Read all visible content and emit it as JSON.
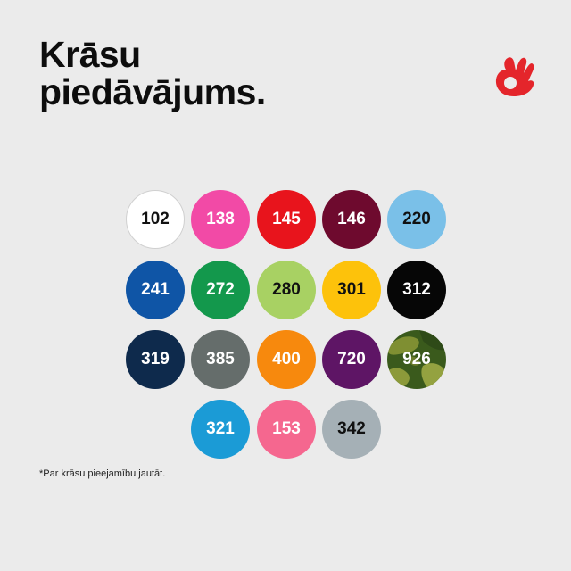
{
  "header": {
    "title_line1": "Krāsu",
    "title_line2": "piedāvājums."
  },
  "logo": {
    "icon": "ok-hand-icon",
    "color": "#e4252b"
  },
  "swatches": [
    {
      "label": "102",
      "color": "#ffffff",
      "text": "#111111"
    },
    {
      "label": "138",
      "color": "#f24aa6",
      "text": "#ffffff"
    },
    {
      "label": "145",
      "color": "#e8141c",
      "text": "#ffffff"
    },
    {
      "label": "146",
      "color": "#6e0a2e",
      "text": "#ffffff"
    },
    {
      "label": "220",
      "color": "#7ac0e8",
      "text": "#111111"
    },
    {
      "label": "241",
      "color": "#0f55a6",
      "text": "#ffffff"
    },
    {
      "label": "272",
      "color": "#13984c",
      "text": "#ffffff"
    },
    {
      "label": "280",
      "color": "#a8d163",
      "text": "#111111"
    },
    {
      "label": "301",
      "color": "#fdc20b",
      "text": "#111111"
    },
    {
      "label": "312",
      "color": "#060606",
      "text": "#ffffff"
    },
    {
      "label": "319",
      "color": "#0e2a4c",
      "text": "#ffffff"
    },
    {
      "label": "385",
      "color": "#656d6b",
      "text": "#ffffff"
    },
    {
      "label": "400",
      "color": "#f7890d",
      "text": "#ffffff"
    },
    {
      "label": "720",
      "color": "#5e1565",
      "text": "#ffffff"
    },
    {
      "label": "926",
      "color": "#3a5a1c",
      "text": "#ffffff",
      "pattern": "camo"
    },
    {
      "label": "321",
      "color": "#1b9bd6",
      "text": "#ffffff"
    },
    {
      "label": "153",
      "color": "#f5678f",
      "text": "#ffffff"
    },
    {
      "label": "342",
      "color": "#a5b0b6",
      "text": "#111111"
    }
  ],
  "footnote": "*Par krāsu pieejamību jautāt."
}
